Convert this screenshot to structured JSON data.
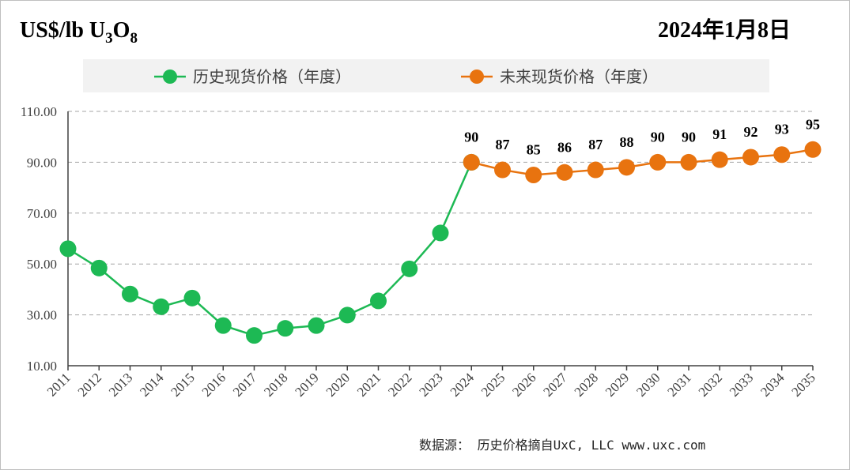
{
  "title_main": "US$/lb U",
  "title_sub1": "3",
  "title_o": "O",
  "title_sub2": "8",
  "date": "2024年1月8日",
  "source": "数据源： 历史价格摘自UxC, LLC   www.uxc.com",
  "chart_data": {
    "type": "line",
    "ylim": [
      10,
      110
    ],
    "yticks": [
      "10.00",
      "30.00",
      "50.00",
      "70.00",
      "90.00",
      "110.00"
    ],
    "grid": true,
    "legend_position": "top",
    "categories": [
      "2011",
      "2012",
      "2013",
      "2014",
      "2015",
      "2016",
      "2017",
      "2018",
      "2019",
      "2020",
      "2021",
      "2022",
      "2023",
      "2024",
      "2025",
      "2026",
      "2027",
      "2028",
      "2029",
      "2030",
      "2031",
      "2032",
      "2033",
      "2034",
      "2035"
    ],
    "series": [
      {
        "name": "历史现货价格（年度）",
        "color": "#1db954",
        "x": [
          "2011",
          "2012",
          "2013",
          "2014",
          "2015",
          "2016",
          "2017",
          "2018",
          "2019",
          "2020",
          "2021",
          "2022",
          "2023",
          "2024"
        ],
        "values": [
          56,
          48.4,
          38.2,
          33.2,
          36.6,
          25.8,
          21.9,
          24.7,
          25.8,
          29.9,
          35.5,
          48.1,
          62.2,
          90
        ]
      },
      {
        "name": "未来现货价格（年度）",
        "color": "#e8730f",
        "x": [
          "2024",
          "2025",
          "2026",
          "2027",
          "2028",
          "2029",
          "2030",
          "2031",
          "2032",
          "2033",
          "2034",
          "2035"
        ],
        "values": [
          90,
          87,
          85,
          86,
          87,
          88,
          90,
          90,
          91,
          92,
          93,
          95
        ],
        "labels": [
          "90",
          "87",
          "85",
          "86",
          "87",
          "88",
          "90",
          "90",
          "91",
          "92",
          "93",
          "95"
        ]
      }
    ]
  }
}
